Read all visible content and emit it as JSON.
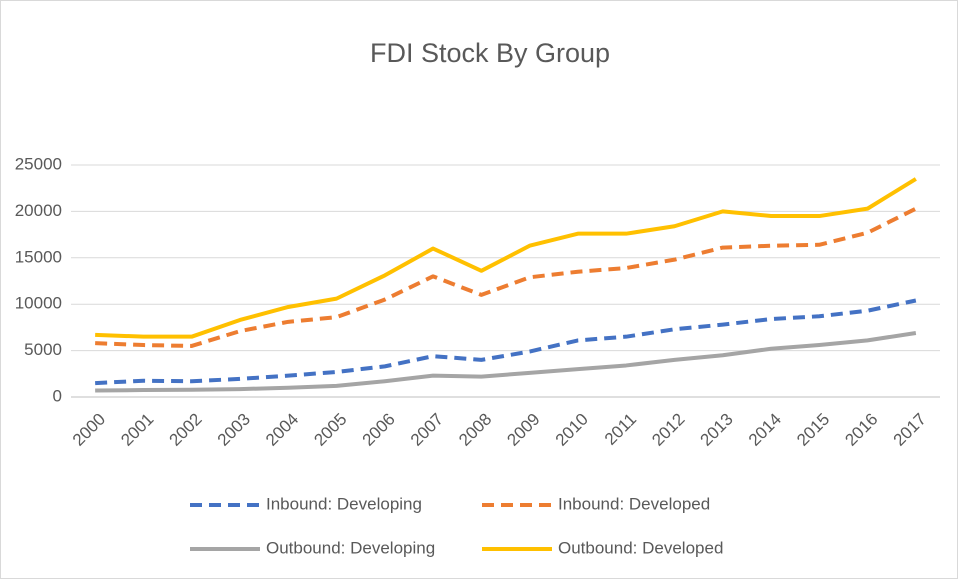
{
  "chart_data": {
    "type": "line",
    "title": "FDI Stock By Group",
    "categories": [
      "2000",
      "2001",
      "2002",
      "2003",
      "2004",
      "2005",
      "2006",
      "2007",
      "2008",
      "2009",
      "2010",
      "2011",
      "2012",
      "2013",
      "2014",
      "2015",
      "2016",
      "2017"
    ],
    "series": [
      {
        "name": "Inbound: Developing",
        "color": "#4472c4",
        "dash": true,
        "values": [
          1500,
          1750,
          1700,
          1950,
          2300,
          2700,
          3300,
          4400,
          4000,
          4900,
          6100,
          6500,
          7300,
          7800,
          8400,
          8700,
          9300,
          10400
        ]
      },
      {
        "name": "Inbound: Developed",
        "color": "#ed7d31",
        "dash": true,
        "values": [
          5800,
          5600,
          5500,
          7100,
          8100,
          8600,
          10500,
          13000,
          11000,
          12900,
          13500,
          13900,
          14800,
          16100,
          16300,
          16400,
          17700,
          20300
        ]
      },
      {
        "name": "Outbound: Developing",
        "color": "#a5a5a5",
        "dash": false,
        "values": [
          700,
          750,
          780,
          850,
          1000,
          1200,
          1700,
          2300,
          2200,
          2600,
          3000,
          3400,
          4000,
          4500,
          5200,
          5600,
          6100,
          6900
        ]
      },
      {
        "name": "Outbound: Developed",
        "color": "#ffc000",
        "dash": false,
        "values": [
          6700,
          6500,
          6500,
          8300,
          9700,
          10600,
          13100,
          16000,
          13600,
          16300,
          17600,
          17600,
          18400,
          20000,
          19500,
          19500,
          20300,
          23500
        ]
      }
    ],
    "ylim": [
      0,
      25000
    ],
    "yticks": [
      0,
      5000,
      10000,
      15000,
      20000,
      25000
    ],
    "grid": true,
    "legend": "bottom"
  }
}
